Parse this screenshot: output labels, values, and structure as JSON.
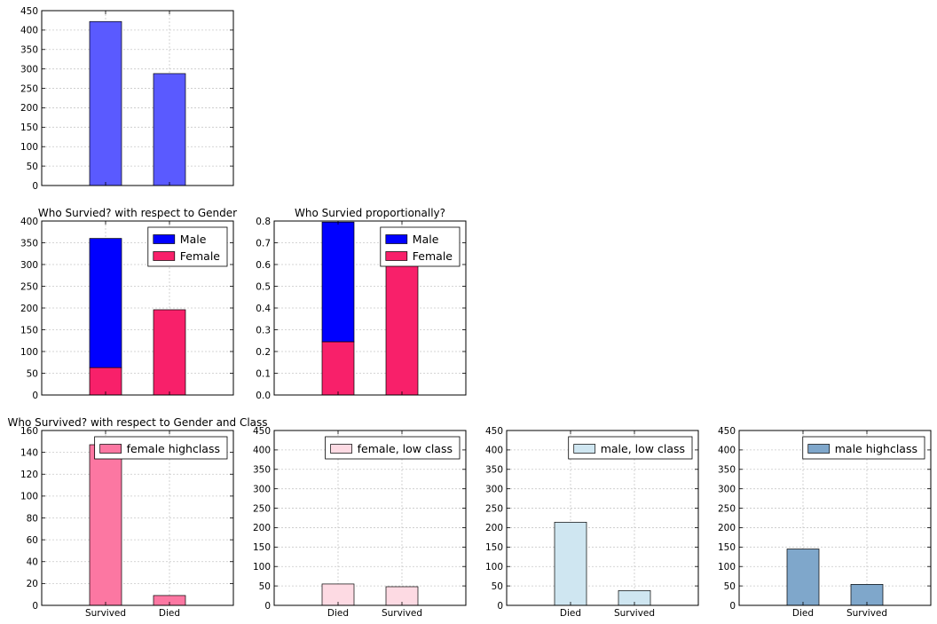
{
  "chart_data": [
    {
      "type": "bar",
      "title": "",
      "categories": [
        "",
        ""
      ],
      "series": [
        {
          "values": [
            422,
            288
          ],
          "color": "#5a5aff"
        }
      ],
      "ylim": [
        0,
        450
      ],
      "yticks": [
        "0",
        "50",
        "100",
        "150",
        "200",
        "250",
        "300",
        "350",
        "400",
        "450"
      ],
      "xlim": [
        -1,
        2
      ],
      "grid": true,
      "legend": null
    },
    {
      "type": "bar",
      "stacked": true,
      "title": "Who Survied? with respect to Gender",
      "categories": [
        "",
        ""
      ],
      "series": [
        {
          "name": "Female",
          "values": [
            63,
            196
          ],
          "color": "#f8206a"
        },
        {
          "name": "Male",
          "values": [
            297,
            0
          ],
          "color": "#0000ff"
        }
      ],
      "ylim": [
        0,
        400
      ],
      "yticks": [
        "0",
        "50",
        "100",
        "150",
        "200",
        "250",
        "300",
        "350",
        "400"
      ],
      "xlim": [
        -1,
        2
      ],
      "grid": true,
      "legend": {
        "placement": "top-right",
        "entries": [
          {
            "label": "Male",
            "color": "#0000ff"
          },
          {
            "label": "Female",
            "color": "#f8206a"
          }
        ]
      }
    },
    {
      "type": "bar",
      "stacked": true,
      "title": "Who Survied proportionally?",
      "categories": [
        "",
        ""
      ],
      "series": [
        {
          "name": "Female",
          "values": [
            0.245,
            0.61
          ],
          "color": "#f8206a"
        },
        {
          "name": "Male",
          "values": [
            0.55,
            0
          ],
          "color": "#0000ff"
        }
      ],
      "ylim": [
        0,
        0.8
      ],
      "yticks": [
        "0.0",
        "0.1",
        "0.2",
        "0.3",
        "0.4",
        "0.5",
        "0.6",
        "0.7",
        "0.8"
      ],
      "xlim": [
        -1,
        2
      ],
      "grid": true,
      "legend": {
        "placement": "top-right",
        "entries": [
          {
            "label": "Male",
            "color": "#0000ff"
          },
          {
            "label": "Female",
            "color": "#f8206a"
          }
        ]
      }
    },
    {
      "type": "bar",
      "title": "Who Survived? with respect to Gender and Class",
      "categories": [
        "Survived",
        "Died"
      ],
      "series": [
        {
          "name": "female highclass",
          "values": [
            147,
            9
          ],
          "color": "#fc77a2"
        }
      ],
      "ylim": [
        0,
        160
      ],
      "yticks": [
        "0",
        "20",
        "40",
        "60",
        "80",
        "100",
        "120",
        "140",
        "160"
      ],
      "xlim": [
        -1,
        2
      ],
      "grid": true,
      "legend": {
        "placement": "top-right",
        "entries": [
          {
            "label": "female highclass",
            "color": "#fc77a2"
          }
        ]
      }
    },
    {
      "type": "bar",
      "title": "",
      "categories": [
        "Died",
        "Survived"
      ],
      "series": [
        {
          "name": "female, low class",
          "values": [
            55,
            48
          ],
          "color": "#fddae3"
        }
      ],
      "ylim": [
        0,
        450
      ],
      "yticks": [
        "0",
        "50",
        "100",
        "150",
        "200",
        "250",
        "300",
        "350",
        "400",
        "450"
      ],
      "xlim": [
        -1,
        2
      ],
      "grid": true,
      "legend": {
        "placement": "top-right",
        "entries": [
          {
            "label": "female, low class",
            "color": "#fddae3"
          }
        ]
      }
    },
    {
      "type": "bar",
      "title": "",
      "categories": [
        "Died",
        "Survived"
      ],
      "series": [
        {
          "name": "male, low class",
          "values": [
            214,
            38
          ],
          "color": "#cfe6f1"
        }
      ],
      "ylim": [
        0,
        450
      ],
      "yticks": [
        "0",
        "50",
        "100",
        "150",
        "200",
        "250",
        "300",
        "350",
        "400",
        "450"
      ],
      "xlim": [
        -1,
        2
      ],
      "grid": true,
      "legend": {
        "placement": "top-right",
        "entries": [
          {
            "label": "male, low class",
            "color": "#cfe6f1"
          }
        ]
      }
    },
    {
      "type": "bar",
      "title": "",
      "categories": [
        "Died",
        "Survived"
      ],
      "series": [
        {
          "name": "male highclass",
          "values": [
            145,
            54
          ],
          "color": "#7fa7cb"
        }
      ],
      "ylim": [
        0,
        450
      ],
      "yticks": [
        "0",
        "50",
        "100",
        "150",
        "200",
        "250",
        "300",
        "350",
        "400",
        "450"
      ],
      "xlim": [
        -1,
        2
      ],
      "grid": true,
      "legend": {
        "placement": "top-right",
        "entries": [
          {
            "label": "male highclass",
            "color": "#7fa7cb"
          }
        ]
      }
    }
  ]
}
